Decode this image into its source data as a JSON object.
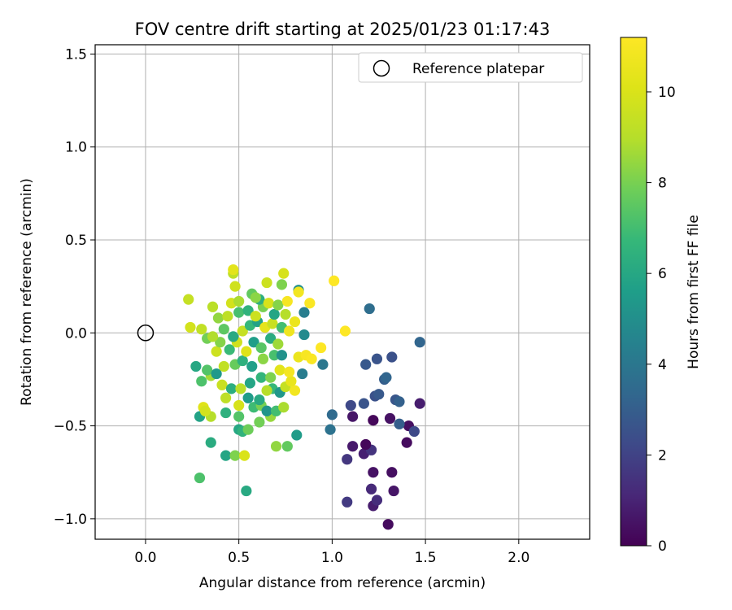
{
  "chart_data": {
    "type": "scatter",
    "title": "FOV centre drift starting at 2025/01/23 01:17:43",
    "xlabel": "Angular distance from reference (arcmin)",
    "ylabel": "Rotation from reference (arcmin)",
    "xlim": [
      -0.27,
      2.38
    ],
    "ylim": [
      -1.11,
      1.55
    ],
    "xticks": [
      0.0,
      0.5,
      1.0,
      1.5,
      2.0
    ],
    "xtick_labels": [
      "0.0",
      "0.5",
      "1.0",
      "1.5",
      "2.0"
    ],
    "yticks": [
      -1.0,
      -0.5,
      0.0,
      0.5,
      1.0,
      1.5
    ],
    "ytick_labels": [
      "−1.0",
      "−0.5",
      "0.0",
      "0.5",
      "1.0",
      "1.5"
    ],
    "grid": true,
    "legend": {
      "placement": "top-right",
      "entries": [
        {
          "label": "Reference platepar",
          "marker": "open-circle"
        }
      ]
    },
    "reference_point": {
      "x": 0.0,
      "y": 0.0
    },
    "colorbar": {
      "label": "Hours from first FF file",
      "colormap": "viridis",
      "range": [
        0,
        11.2
      ],
      "ticks": [
        0,
        2,
        4,
        6,
        8,
        10
      ],
      "tick_labels": [
        "0",
        "2",
        "4",
        "6",
        "8",
        "10"
      ]
    },
    "points_note_hours": "third value of each point is hours (color)",
    "points": [
      [
        1.3,
        -1.03,
        0.3
      ],
      [
        1.22,
        -0.93,
        0.8
      ],
      [
        1.33,
        -0.85,
        0.6
      ],
      [
        1.21,
        -0.84,
        1.2
      ],
      [
        1.24,
        -0.9,
        1.3
      ],
      [
        1.08,
        -0.91,
        1.7
      ],
      [
        1.22,
        -0.75,
        0.5
      ],
      [
        1.32,
        -0.75,
        0.4
      ],
      [
        1.17,
        -0.65,
        0.9
      ],
      [
        1.21,
        -0.63,
        1.5
      ],
      [
        1.11,
        -0.61,
        0.7
      ],
      [
        1.18,
        -0.6,
        0.2
      ],
      [
        1.08,
        -0.68,
        1.6
      ],
      [
        1.4,
        -0.59,
        0.3
      ],
      [
        1.41,
        -0.5,
        0.4
      ],
      [
        1.44,
        -0.53,
        2.2
      ],
      [
        1.31,
        -0.46,
        0.5
      ],
      [
        1.22,
        -0.47,
        0.2
      ],
      [
        1.11,
        -0.45,
        0.6
      ],
      [
        1.47,
        -0.38,
        0.8
      ],
      [
        1.36,
        -0.49,
        3.0
      ],
      [
        1.1,
        -0.39,
        2.2
      ],
      [
        1.17,
        -0.38,
        2.6
      ],
      [
        1.23,
        -0.34,
        2.5
      ],
      [
        1.25,
        -0.33,
        2.8
      ],
      [
        1.34,
        -0.36,
        2.7
      ],
      [
        1.36,
        -0.37,
        3.1
      ],
      [
        1.28,
        -0.25,
        3.0
      ],
      [
        1.29,
        -0.24,
        3.3
      ],
      [
        1.18,
        -0.17,
        2.8
      ],
      [
        1.24,
        -0.14,
        2.6
      ],
      [
        1.32,
        -0.13,
        2.5
      ],
      [
        1.47,
        -0.05,
        3.3
      ],
      [
        1.2,
        0.13,
        3.6
      ],
      [
        0.99,
        -0.52,
        3.8
      ],
      [
        1.0,
        -0.44,
        3.5
      ],
      [
        0.95,
        -0.17,
        4.0
      ],
      [
        0.84,
        -0.22,
        4.2
      ],
      [
        0.85,
        -0.01,
        4.8
      ],
      [
        0.85,
        0.11,
        4.3
      ],
      [
        0.82,
        0.23,
        5.0
      ],
      [
        0.81,
        -0.55,
        5.5
      ],
      [
        0.54,
        -0.85,
        6.1
      ],
      [
        0.29,
        -0.78,
        7.2
      ],
      [
        0.43,
        -0.66,
        5.9
      ],
      [
        0.48,
        -0.66,
        8.1
      ],
      [
        0.53,
        -0.66,
        10.0
      ],
      [
        0.35,
        -0.59,
        6.2
      ],
      [
        0.5,
        -0.52,
        6.0
      ],
      [
        0.52,
        -0.53,
        6.5
      ],
      [
        0.7,
        -0.61,
        8.4
      ],
      [
        0.76,
        -0.61,
        7.6
      ],
      [
        0.61,
        -0.48,
        7.9
      ],
      [
        0.67,
        -0.45,
        8.5
      ],
      [
        0.29,
        -0.45,
        5.8
      ],
      [
        0.35,
        -0.45,
        9.0
      ],
      [
        0.31,
        -0.4,
        10.2
      ],
      [
        0.32,
        -0.42,
        9.8
      ],
      [
        0.43,
        -0.43,
        6.4
      ],
      [
        0.5,
        -0.45,
        7.3
      ],
      [
        0.55,
        -0.52,
        7.8
      ],
      [
        0.58,
        -0.4,
        6.9
      ],
      [
        0.62,
        -0.39,
        8.0
      ],
      [
        0.65,
        -0.42,
        5.2
      ],
      [
        0.7,
        -0.42,
        7.0
      ],
      [
        0.74,
        -0.4,
        8.8
      ],
      [
        0.43,
        -0.35,
        9.2
      ],
      [
        0.5,
        -0.39,
        9.9
      ],
      [
        0.55,
        -0.35,
        5.5
      ],
      [
        0.61,
        -0.36,
        6.1
      ],
      [
        0.68,
        -0.3,
        6.7
      ],
      [
        0.72,
        -0.32,
        5.3
      ],
      [
        0.75,
        -0.29,
        9.4
      ],
      [
        0.8,
        -0.31,
        10.8
      ],
      [
        0.78,
        -0.26,
        10.5
      ],
      [
        0.3,
        -0.26,
        7.2
      ],
      [
        0.35,
        -0.23,
        8.7
      ],
      [
        0.41,
        -0.28,
        9.5
      ],
      [
        0.46,
        -0.3,
        6.3
      ],
      [
        0.51,
        -0.3,
        9.1
      ],
      [
        0.56,
        -0.27,
        5.9
      ],
      [
        0.62,
        -0.24,
        6.6
      ],
      [
        0.65,
        -0.31,
        9.0
      ],
      [
        0.67,
        -0.24,
        8.1
      ],
      [
        0.72,
        -0.2,
        10.3
      ],
      [
        0.77,
        -0.21,
        10.9
      ],
      [
        0.27,
        -0.18,
        6.0
      ],
      [
        0.33,
        -0.2,
        7.3
      ],
      [
        0.38,
        -0.22,
        5.4
      ],
      [
        0.42,
        -0.18,
        9.3
      ],
      [
        0.48,
        -0.17,
        7.7
      ],
      [
        0.52,
        -0.15,
        6.4
      ],
      [
        0.57,
        -0.18,
        5.7
      ],
      [
        0.63,
        -0.14,
        8.3
      ],
      [
        0.69,
        -0.12,
        7.1
      ],
      [
        0.73,
        -0.12,
        5.1
      ],
      [
        0.82,
        -0.13,
        10.6
      ],
      [
        0.86,
        -0.12,
        11.0
      ],
      [
        0.89,
        -0.14,
        11.1
      ],
      [
        0.94,
        -0.08,
        11.2
      ],
      [
        0.38,
        -0.1,
        9.6
      ],
      [
        0.4,
        -0.05,
        8.2
      ],
      [
        0.45,
        -0.09,
        6.8
      ],
      [
        0.49,
        -0.05,
        9.7
      ],
      [
        0.54,
        -0.1,
        10.1
      ],
      [
        0.58,
        -0.05,
        5.6
      ],
      [
        0.62,
        -0.08,
        7.4
      ],
      [
        0.67,
        -0.03,
        6.2
      ],
      [
        0.71,
        -0.06,
        8.6
      ],
      [
        0.33,
        -0.03,
        7.9
      ],
      [
        0.36,
        -0.02,
        8.9
      ],
      [
        0.42,
        0.02,
        7.5
      ],
      [
        0.47,
        -0.02,
        6.1
      ],
      [
        0.52,
        0.01,
        9.4
      ],
      [
        0.56,
        0.04,
        6.7
      ],
      [
        0.6,
        0.06,
        5.8
      ],
      [
        0.64,
        0.03,
        10.4
      ],
      [
        0.68,
        0.05,
        9.5
      ],
      [
        0.73,
        0.03,
        7.0
      ],
      [
        0.77,
        0.01,
        10.7
      ],
      [
        0.24,
        0.03,
        9.8
      ],
      [
        0.3,
        0.02,
        9.3
      ],
      [
        0.39,
        0.08,
        8.4
      ],
      [
        0.44,
        0.09,
        9.2
      ],
      [
        0.5,
        0.11,
        7.1
      ],
      [
        0.55,
        0.12,
        6.5
      ],
      [
        0.59,
        0.09,
        9.6
      ],
      [
        0.63,
        0.14,
        8.0
      ],
      [
        0.69,
        0.1,
        5.9
      ],
      [
        0.75,
        0.1,
        9.0
      ],
      [
        0.8,
        0.06,
        10.6
      ],
      [
        0.36,
        0.14,
        9.1
      ],
      [
        0.46,
        0.16,
        9.8
      ],
      [
        0.5,
        0.17,
        8.8
      ],
      [
        0.57,
        0.21,
        7.6
      ],
      [
        0.61,
        0.18,
        6.3
      ],
      [
        0.66,
        0.16,
        9.9
      ],
      [
        0.71,
        0.15,
        8.2
      ],
      [
        0.76,
        0.17,
        11.0
      ],
      [
        0.82,
        0.22,
        10.8
      ],
      [
        0.88,
        0.16,
        11.1
      ],
      [
        0.23,
        0.18,
        9.4
      ],
      [
        0.48,
        0.25,
        9.7
      ],
      [
        0.59,
        0.19,
        8.3
      ],
      [
        0.65,
        0.27,
        9.6
      ],
      [
        0.73,
        0.26,
        8.1
      ],
      [
        0.74,
        0.32,
        9.9
      ],
      [
        0.47,
        0.32,
        9.2
      ],
      [
        0.47,
        0.34,
        10.3
      ],
      [
        1.01,
        0.28,
        11.2
      ],
      [
        1.07,
        0.01,
        11.2
      ]
    ]
  }
}
